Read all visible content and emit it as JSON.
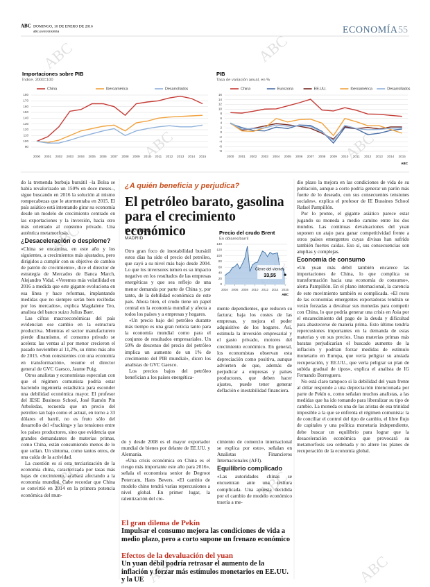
{
  "header": {
    "brand": "ABC",
    "date": "DOMINGO, 10 DE ENERO DE 2016",
    "url": "abc.es/economia",
    "section": "ECONOMÍA",
    "page": "55"
  },
  "watermark": "ABC",
  "chart_data": [
    {
      "type": "line",
      "title": "Importaciones sobre PIB",
      "subtitle": "Índice. 2000=100",
      "categories": [
        "2000",
        "2001",
        "2002",
        "2003",
        "2004",
        "2005",
        "2006",
        "2007",
        "2008",
        "2009",
        "2010",
        "2011",
        "2012",
        "2013",
        "2014",
        "2015"
      ],
      "series": [
        {
          "name": "China",
          "color": "#c43a35",
          "values": [
            100,
            108,
            125,
            152,
            155,
            165,
            165,
            160,
            145,
            165,
            168,
            170,
            175,
            178,
            174,
            165
          ]
        },
        {
          "name": "Iberoamérica",
          "color": "#f0a23c",
          "values": [
            100,
            98,
            102,
            110,
            118,
            122,
            126,
            128,
            118,
            132,
            135,
            140,
            142,
            143,
            144,
            145
          ]
        },
        {
          "name": "Desarrollados",
          "color": "#8fb1da",
          "values": [
            100,
            97,
            97,
            102,
            108,
            113,
            118,
            122,
            110,
            118,
            122,
            125,
            127,
            125,
            125,
            128
          ]
        }
      ],
      "ylim": [
        90,
        180
      ],
      "yticks": [
        90,
        100,
        110,
        120,
        130,
        140,
        150,
        160,
        170,
        180
      ],
      "grid": true
    },
    {
      "type": "line",
      "title": "PIB",
      "subtitle": "Tasa de variación anual, en %",
      "categories": [
        "2000",
        "2001",
        "2002",
        "2003",
        "2004",
        "2005",
        "2006",
        "2007",
        "2008",
        "2009",
        "2010",
        "2011",
        "2012",
        "2013",
        "2014",
        "2015"
      ],
      "series": [
        {
          "name": "China",
          "color": "#c43a35",
          "values": [
            8.5,
            8.3,
            9.1,
            10,
            10.1,
            11.4,
            12.7,
            14.2,
            9.6,
            9.2,
            10.6,
            9.5,
            7.9,
            7.8,
            7.3,
            6.9
          ]
        },
        {
          "name": "Eurozona",
          "color": "#4a6fa5",
          "values": [
            3.8,
            2.1,
            0.9,
            0.7,
            2.3,
            1.7,
            3.2,
            3.0,
            0.5,
            -4.5,
            2.1,
            1.6,
            -0.9,
            -0.3,
            0.9,
            1.5
          ]
        },
        {
          "name": "EE.UU.",
          "color": "#7a2a22",
          "values": [
            4.1,
            1.0,
            1.8,
            2.8,
            3.8,
            3.3,
            2.7,
            1.8,
            -0.3,
            -2.8,
            2.5,
            1.6,
            2.2,
            1.5,
            2.4,
            2.4
          ]
        },
        {
          "name": "Iberoamérica",
          "color": "#f0a23c",
          "values": [
            4,
            0.7,
            0.5,
            2,
            6,
            4.5,
            5.5,
            5.7,
            4,
            -1.3,
            6,
            4.6,
            2.9,
            2.9,
            1.3,
            -0.3
          ]
        },
        {
          "name": "Desarrollados",
          "color": "#8fb1da",
          "values": [
            4.1,
            1.4,
            1.7,
            2.0,
            3.2,
            2.7,
            3.0,
            2.6,
            0.2,
            -3.4,
            3.1,
            1.7,
            1.2,
            1.3,
            1.8,
            2.0
          ]
        }
      ],
      "ylim": [
        -8,
        16
      ],
      "yticks": [
        -8,
        -6,
        -4,
        -2,
        0,
        2,
        4,
        6,
        8,
        10,
        12,
        14,
        16
      ],
      "grid": true,
      "source": "ABC"
    },
    {
      "type": "area",
      "title": "Precio del crudo Brent",
      "subtitle": "En dólares/barril",
      "x": [
        2004,
        2004.5,
        2005,
        2005.5,
        2006,
        2006.5,
        2007,
        2007.5,
        2008,
        2008.5,
        2009,
        2009.5,
        2010,
        2010.5,
        2011,
        2011.5,
        2012,
        2012.5,
        2013,
        2013.5,
        2014,
        2014.5,
        2015,
        2015.5,
        2016
      ],
      "values": [
        31,
        38,
        44,
        58,
        62,
        72,
        55,
        72,
        92,
        133,
        45,
        68,
        75,
        77,
        97,
        116,
        111,
        97,
        112,
        106,
        108,
        110,
        50,
        58,
        33.55
      ],
      "value_labels": [
        null,
        null,
        null,
        null,
        null,
        null,
        null,
        null,
        null,
        null,
        null,
        null,
        null,
        null,
        null,
        null,
        null,
        null,
        null,
        null,
        null,
        null,
        null,
        null,
        "33,55"
      ],
      "annotation": "Cierre del viernes",
      "color": "#3a6ea5",
      "xlim": [
        2004,
        2016.4
      ],
      "xticks": [
        2004,
        2006,
        2008,
        2010,
        2012,
        2014,
        2016
      ],
      "ylim": [
        0,
        140
      ],
      "yticks": [
        0,
        20,
        40,
        60,
        80,
        100,
        120,
        140
      ],
      "grid": true,
      "source": "ABC"
    }
  ],
  "left_column": [
    "do la tremenda burbuja bursátil –la Bolsa se había revalorizado un 150% en doce meses–, sigue buscando en 2016 la solución al mismo rompecabezas que le atormentaba en 2015. El país asiático está intentando girar su economía desde un modelo de crecimiento centrado en las exportaciones y la inversión, hacia otro más orientado al consumo privado. Una auténtica metamorfosis.",
    "¿Desaceleración o desplome?",
    "«China se encamina, en este año y los siguientes, a crecimientos más ajustados, pero dirigidos a cumplir con su objetivo de cambio de patrón de crecimiento», dice el director de estrategia de Mercados de Banca March, Alejandro Vidal. «Veremos más volatilidad en 2016 a medida que este gigante evoluciona en esa línea y hace reformas, implantando medidas que no siempre serán bien recibidas por los mercados», explica Magdalene Teo, analista del banco suizo Julius Baer.",
    "Las cifras macroeconómicas del país evidencian ese cambio en la estructura productiva. Mientras el sector manufacturero pierde dinamismo, el consumo privado se acelera: las ventas al por menor crecieron el pasado noviembre al 11,2%, su ritmo más alto de 2015. «Son consistentes con una economía en transformación», resume el director general de GVC Gaesco, Jaume Puig.",
    "Otros analistas y economistas especulan con que el régimen comunista podría estar haciendo ingeniería estadística para esconder una debilidad económica mayor. El profesor del IESE Business School, José Ramón Pin Arboledas, recuerda que un precio del petróleo tan bajo como el actual, en torno a 33 dólares el barril, no es fruto sólo del desarrollo del «fracking» y las tensiones entre los países productores, sino que evidencia que grandes demandantes de materias primas, como China, están consumiendo menos de lo que solían. Un síntoma, como tantos otros, de una caída de la actividad.",
    "La cuestión es si esta terciarización de la economía china, caracterizada por tasas más bajas de crecimiento, acabará afectando a la economía mundial. Cabe recordar que China se convirtió en 2014 en la primera potencia económica del mun-"
  ],
  "article": {
    "kicker": "¿A quién beneficia y perjudica?",
    "headline": "El petróleo barato, gasolina para el crecimiento económico",
    "byline": "M. V. / M. C.",
    "place": "MADRID",
    "col1": [
      "Otro gran foco de inestabilidad bursátil estos días ha sido el precio del petróleo, que cayó a su nivel más bajo desde 2004. Lo que los inversores temen es su impacto negativo en los resultados de las empresas energéticas y que sea reflejo de una menor demanda por parte de China y, por tanto, de la debilidad económica de este país. Ahora bien, el crudo tiene un papel central en la economía mundial y afecta a todos los países y a empresas y hogares.",
      "«Un precio bajo del petróleo durante más tiempo es una gran noticia tanto para la economía mundial como para el conjunto de resultados empresariales. Un 50% de descenso del precio del petróleo implica un aumento de un 1% de crecimiento del PIB mundial», dicen los analistas de GVC Gaesco.",
      "Los precios bajos del petróleo benefician a los países energética-"
    ],
    "col2": [
      "mente dependientes, que reducen su factura; baja los costes de las empresas, y mejora el poder adquisitivo de los hogares. Así, estimula la inversión empresarial y el gasto privado, motores del crecimiento económico. En general, los economistas observan esta depreciación como positiva, aunque advierten de que, además de perjudicar a empresas y países productores, que deben hacer ajustes, puede tener generar deflación e inestabilidad financiera."
    ]
  },
  "lower": {
    "col1": [
      "do y desde 2008 es el mayor exportador mundial de bienes por delante de EE.UU. y Alemania.",
      "«Una crisis económica en China es el riesgo más importante este año para 2016», señala el economista senior de Degroot Petercam, Hans Bevers. «El cambio de modelo chino tendrá varias repercusiones a nivel global. En primer lugar, la ralentización del cre-"
    ],
    "col2": [
      "cimiento de comercio internacional se explica por esto», señalan en Analistas Financieros Internacionales (AFI).",
      "Equilibrio complicado",
      "«Las autoridades chinas se encuentran ante una tesitura complicada. Una apuesta decidida por el cambio de modelo económico traería a me-"
    ]
  },
  "boxes": [
    {
      "title": "El gran dilema de Pekín",
      "text": "Impulsar el consumo mejora las condiciones de vida a medio plazo, pero a corto supone un frenazo económico"
    },
    {
      "title": "Efectos de la devaluación del yuan",
      "text": "Un yuan débil podría retrasar el aumento de la inflación y forzar más estímulos monetarios en EE.UU. y la UE"
    }
  ],
  "right_column": [
    "dio plazo la mejora en las condiciones de vida de su población, aunque a corto podría generar un parón más fuerte de lo deseado, con sus consecuentes tensiones sociales», explica el profesor de IE Bussines School Rafael Pampillón.",
    "Por lo pronto, el gigante asiático parece estar jugando su moneda a medio camino entre los dos mundos. Las continuas devaluaciones del yuan suponen un atajo para ganar competitividad frente a otros países emergentes cuyas divisas han sufrido también fuertes caídas. Eso sí, sus consecuencias son amplias y complejas.",
    "Economía de consumo",
    "«Un yuan más débil también encarece las importaciones de China, lo que complica su transformación hacia una economía de consumo», alerta Pampillón. En el plano internacional, la carencia de este movimiento también es complicada. «El resto de las economías emergentes exportadoras tendrán se verán forzadas a devaluar sus monedas para competir con China, lo que podría generar una crisis en Asia por el encarecimiento del pago de la deuda y dificultad para abastecerse de materia prima. Esto último tendría repercusiones importantes en la demanda de estas materias y en sus precios. Unas materias primas más baratas perjudicarían el buscado aumento de la inflación y podrían forzar medidas de estímulo monetario en Europa, que vería peligrar su ansiada recuperación, y EE.UU., que vería peligrar su plan de subida gradual de tipos», explica el analista de IG Fernando Borreguero.",
    "No está claro tampoco si la debilidad del yuan frente al dólar responde a una depreciación intencionada por parte de Pekín o, como señalan muchos analistas, a las medidas que ha ido tomando para liberalizar su tipo de cambio. La moneda es una de las aristas de esa trinidad imposible a la que se enfrenta el régimen comunista: la de conciliar el control del tipo de cambio, el libre flujo de capitales y una política monetaria independiente, debe buscar un equilibrio para lograr que la desaceleración económica que provocará su metamorfosis sea ordenada y no altere los planes de recuperación de la economía global."
  ]
}
